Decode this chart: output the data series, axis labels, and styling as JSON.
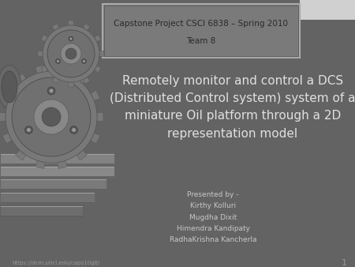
{
  "bg_color": "#636363",
  "title_box_color": "#808080",
  "title_box_text1": "Capstone Project CSCI 6838 – Spring 2010",
  "title_box_text2": "Team 8",
  "main_title": "Remotely monitor and control a DCS\n(Distributed Control system) system of a\nminiature Oil platform through a 2D\nrepresentation model",
  "main_title_color": "#e0e0e0",
  "presented_by": "Presented by -\nKirthy Kolluri\nMugdha Dixit\nHimendra Kandipaty\nRadhaKrishna Kancherla",
  "presented_color": "#c8c8c8",
  "footer_url": "https://dcm.uhcl.edu/caps10g8/",
  "footer_page": "1",
  "footer_color": "#999999",
  "title_box_text_color": "#2a2a2a",
  "top_right_box_color": "#d0d0d0"
}
